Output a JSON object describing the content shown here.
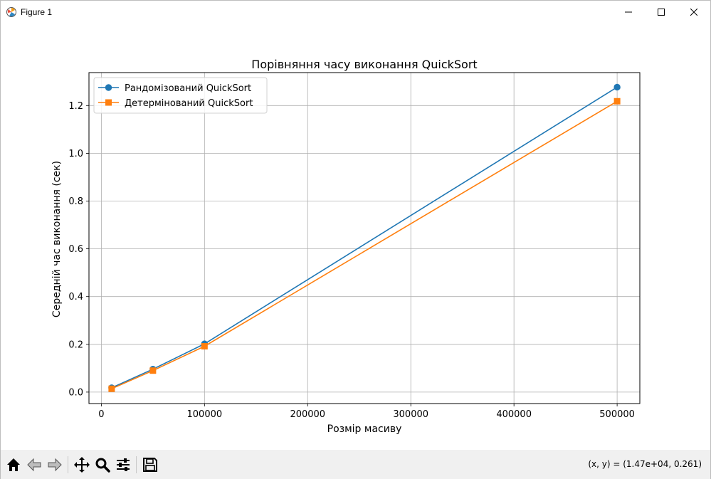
{
  "window": {
    "title": "Figure 1"
  },
  "toolbar": {
    "buttons": [
      "home-icon",
      "back-arrow-icon",
      "forward-arrow-icon",
      "pan-icon",
      "zoom-icon",
      "configure-subplots-icon",
      "save-icon"
    ],
    "coords_readout": "(x, y) = (1.47e+04, 0.261)"
  },
  "chart_data": {
    "type": "line",
    "title": "Порівняння часу виконання QuickSort",
    "xlabel": "Розмір масиву",
    "ylabel": "Середній час виконання (сек)",
    "x": [
      10000,
      50000,
      100000,
      500000
    ],
    "xlim": [
      -12000,
      522000
    ],
    "ylim": [
      -0.048,
      1.338
    ],
    "xticks": [
      0,
      100000,
      200000,
      300000,
      400000,
      500000
    ],
    "xtick_labels": [
      "0",
      "100000",
      "200000",
      "300000",
      "400000",
      "500000"
    ],
    "yticks": [
      0.0,
      0.2,
      0.4,
      0.6,
      0.8,
      1.0,
      1.2
    ],
    "ytick_labels": [
      "0.0",
      "0.2",
      "0.4",
      "0.6",
      "0.8",
      "1.0",
      "1.2"
    ],
    "grid": true,
    "legend_position": "upper-left",
    "series": [
      {
        "name": "Рандомізований QuickSort",
        "values": [
          0.018,
          0.096,
          0.202,
          1.277
        ],
        "color": "#1f77b4",
        "marker": "circle"
      },
      {
        "name": "Детермінований QuickSort",
        "values": [
          0.014,
          0.09,
          0.192,
          1.218
        ],
        "color": "#ff7f0e",
        "marker": "square"
      }
    ]
  }
}
